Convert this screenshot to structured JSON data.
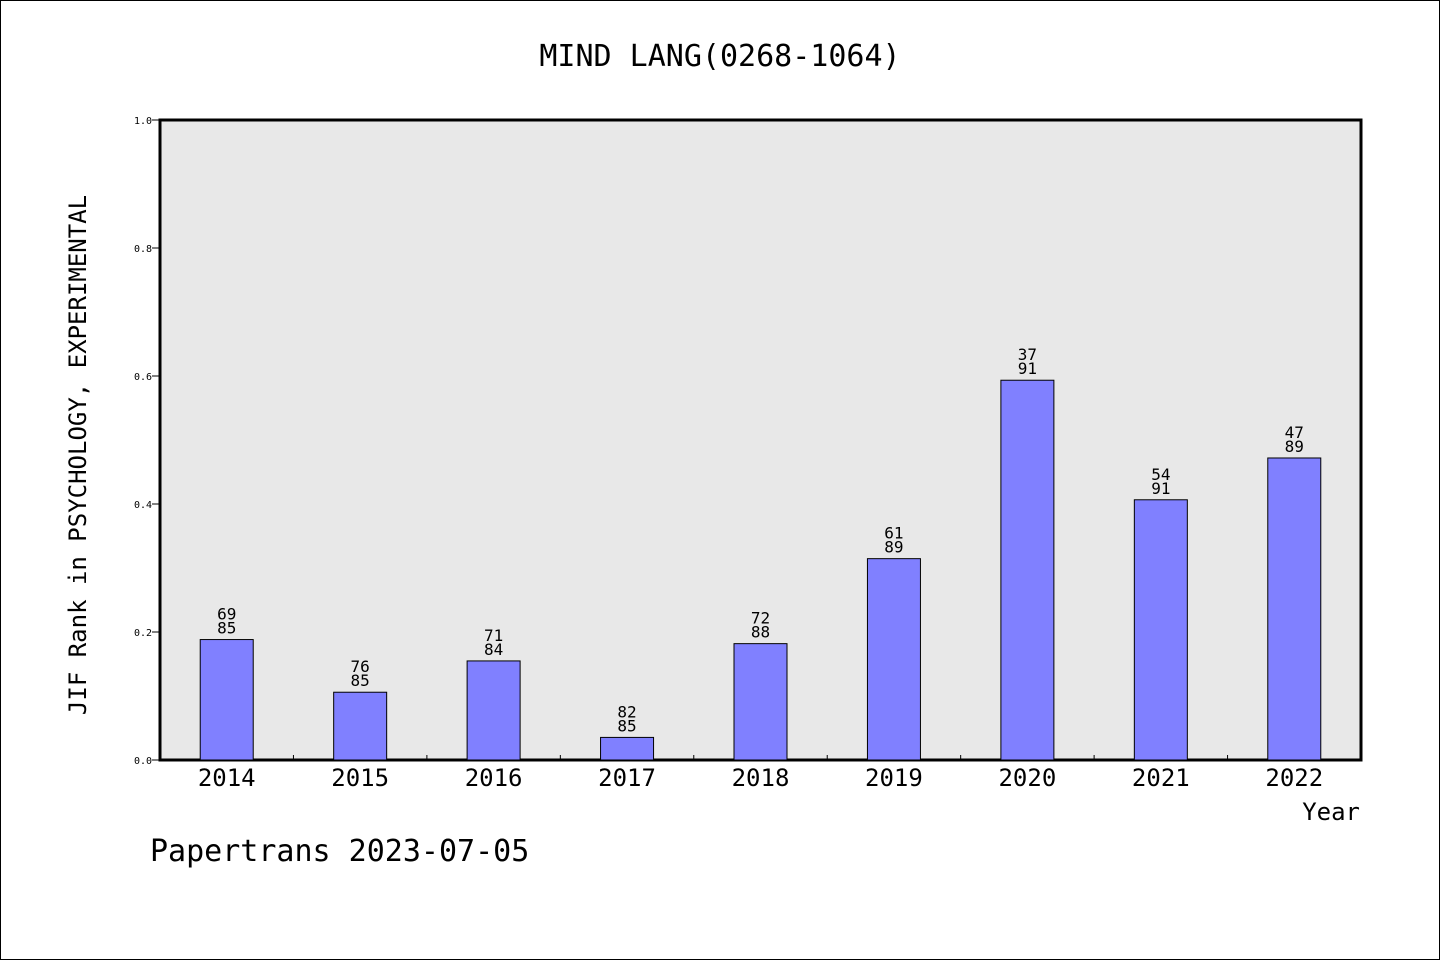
{
  "footer": {
    "source_label": "Papertrans 2023-07-05"
  },
  "chart_data": {
    "type": "bar",
    "title": "MIND LANG(0268-1064)",
    "xlabel": "Year",
    "ylabel": "JIF Rank in PSYCHOLOGY, EXPERIMENTAL",
    "categories": [
      "2014",
      "2015",
      "2016",
      "2017",
      "2018",
      "2019",
      "2020",
      "2021",
      "2022"
    ],
    "values": [
      0.1882,
      0.1059,
      0.1548,
      0.0353,
      0.1818,
      0.3146,
      0.5934,
      0.4066,
      0.4719
    ],
    "rank_labels": [
      {
        "rank": "69",
        "total": "85"
      },
      {
        "rank": "76",
        "total": "85"
      },
      {
        "rank": "71",
        "total": "84"
      },
      {
        "rank": "82",
        "total": "85"
      },
      {
        "rank": "72",
        "total": "88"
      },
      {
        "rank": "61",
        "total": "89"
      },
      {
        "rank": "37",
        "total": "91"
      },
      {
        "rank": "54",
        "total": "91"
      },
      {
        "rank": "47",
        "total": "89"
      }
    ],
    "ylim": [
      0,
      1.0
    ],
    "yticks": [
      "0.0",
      "0.2",
      "0.4",
      "0.6",
      "0.8",
      "1.0"
    ],
    "grid": false,
    "legend": "none",
    "colors": {
      "bar_fill": "#8080ff",
      "plot_background": "#e8e8e8",
      "axis": "#000000"
    }
  }
}
